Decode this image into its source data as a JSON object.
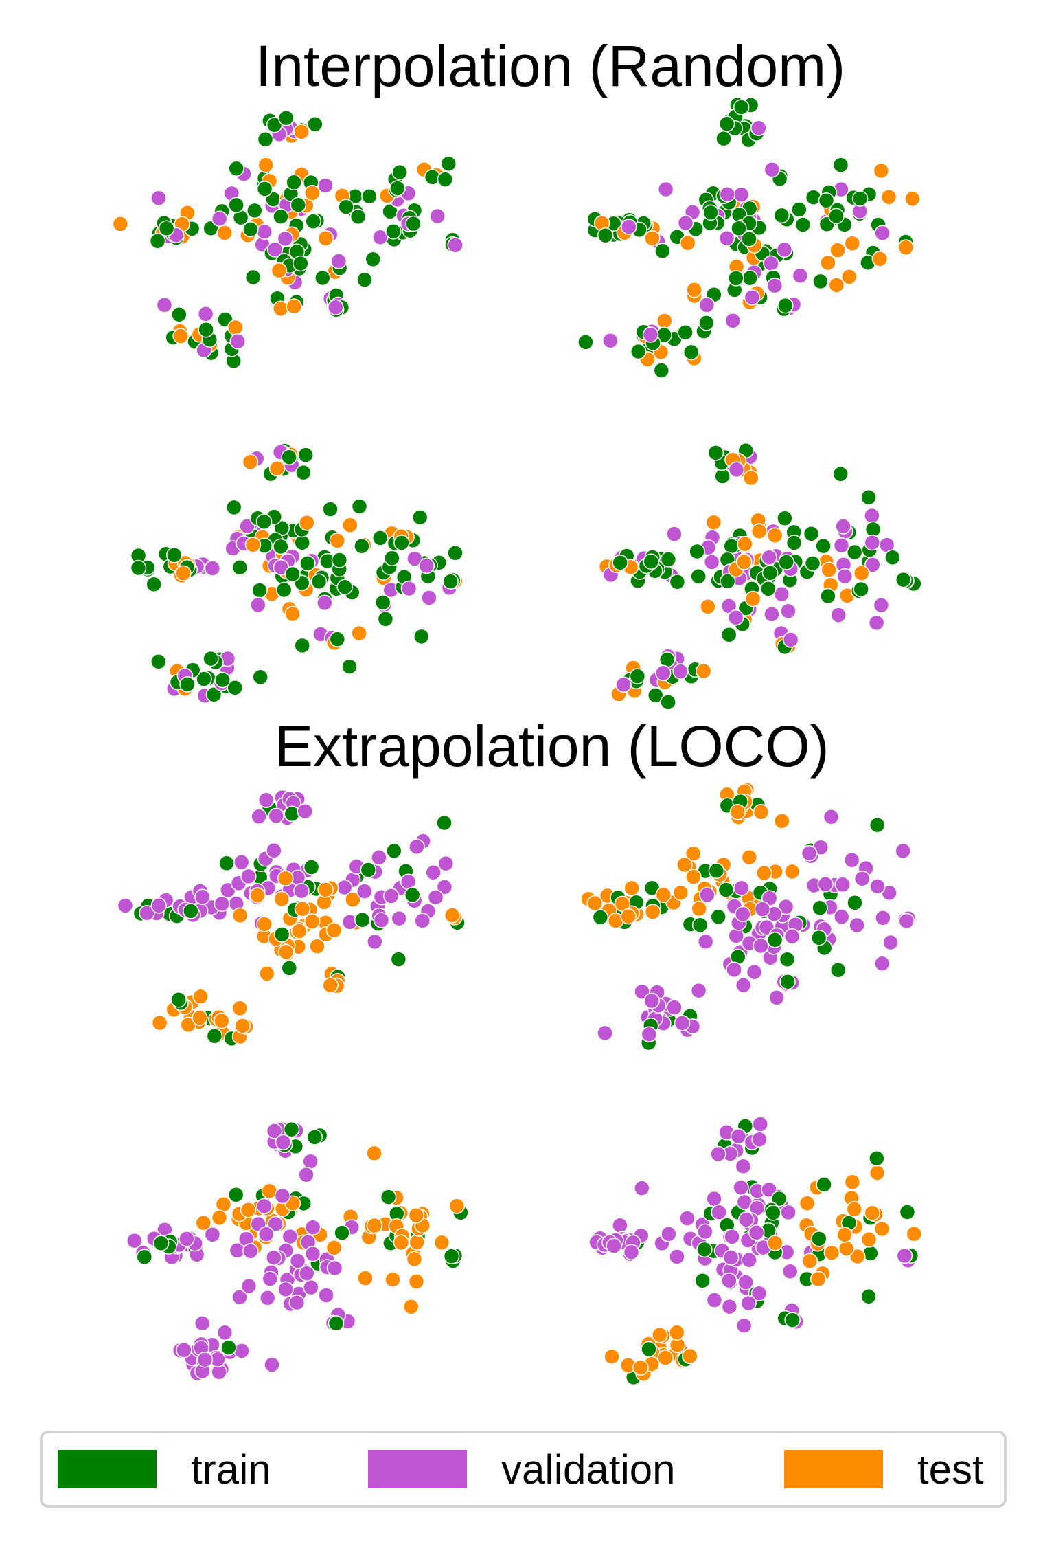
{
  "titles": {
    "interpolation": "Interpolation (Random)",
    "extrapolation": "Extrapolation (LOCO)"
  },
  "legend": [
    {
      "label": "train",
      "color": "#008000"
    },
    {
      "label": "validation",
      "color": "#bf55d3"
    },
    {
      "label": "test",
      "color": "#ff8c00"
    }
  ],
  "chart_data": [
    {
      "type": "scatter",
      "title": "Interpolation (Random)",
      "panel": 1,
      "dominant": "mixed",
      "series": [
        {
          "name": "train",
          "color": "#008000"
        },
        {
          "name": "validation",
          "color": "#bf55d3"
        },
        {
          "name": "test",
          "color": "#ff8c00"
        }
      ]
    },
    {
      "type": "scatter",
      "panel": 2,
      "dominant": "mixed"
    },
    {
      "type": "scatter",
      "panel": 3,
      "dominant": "mixed"
    },
    {
      "type": "scatter",
      "panel": 4,
      "dominant": "mixed"
    },
    {
      "type": "scatter",
      "title": "Extrapolation (LOCO)",
      "panel": 5,
      "cluster_splits": {
        "top": "validation",
        "left": "validation",
        "center_upper": "validation",
        "center": "test",
        "right": "validation",
        "far_right": "test",
        "bottom_right": "test",
        "bottom_left": "test"
      }
    },
    {
      "type": "scatter",
      "panel": 6,
      "cluster_splits": {
        "top": "test",
        "left": "test",
        "center_upper": "test",
        "center": "validation",
        "right": "validation",
        "far_right": "validation",
        "bottom_right": "validation",
        "bottom_left": "validation"
      }
    },
    {
      "type": "scatter",
      "panel": 7,
      "cluster_splits": {
        "top": "validation",
        "left": "validation",
        "center_upper": "test",
        "center": "validation",
        "right": "test",
        "far_right": "train",
        "bottom_right": "validation",
        "bottom_left": "validation"
      }
    },
    {
      "type": "scatter",
      "panel": 8,
      "cluster_splits": {
        "top": "validation",
        "left": "validation",
        "center_upper": "validation",
        "center": "validation",
        "right": "test",
        "far_right": "validation",
        "bottom_right": "train",
        "bottom_left": "test"
      }
    }
  ]
}
